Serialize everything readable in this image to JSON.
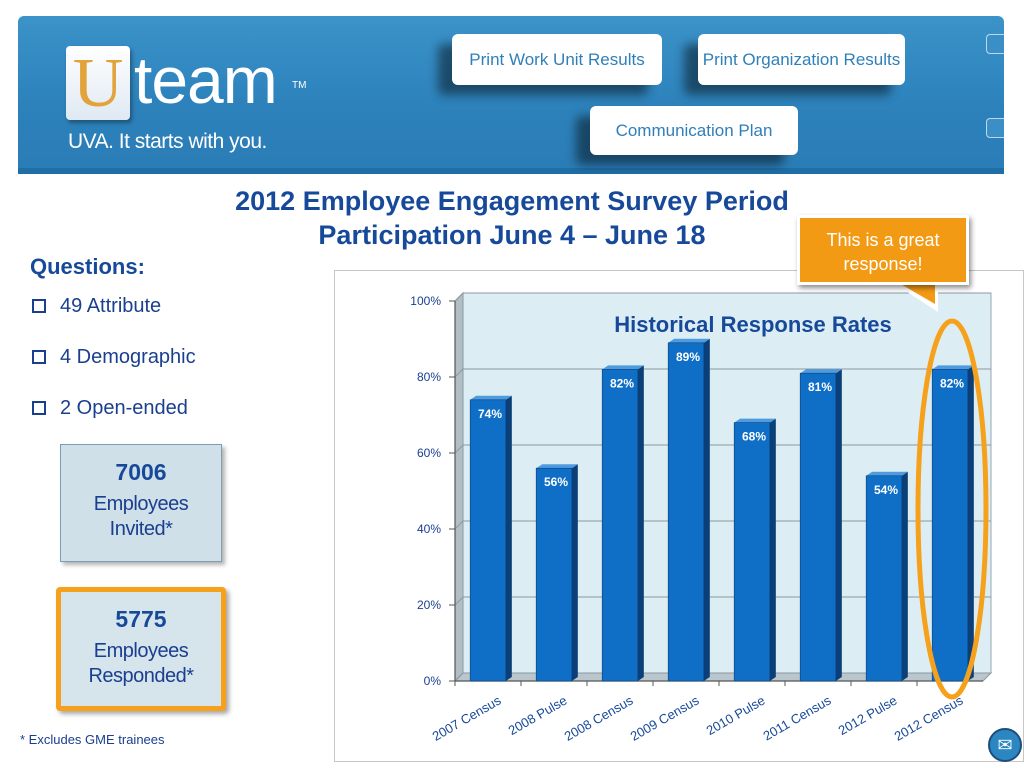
{
  "header": {
    "logo_u": "U",
    "logo_team": "team",
    "logo_tm": "TM",
    "tagline": "UVA. It starts with you.",
    "buttons": {
      "work_unit": "Print Work Unit Results",
      "organization": "Print Organization Results",
      "communication": "Communication Plan"
    }
  },
  "title": {
    "line1": "2012 Employee Engagement Survey Period",
    "line2": "Participation June 4 – June 18"
  },
  "questions": {
    "heading": "Questions:",
    "items": [
      "49 Attribute",
      "4 Demographic",
      "2 Open-ended"
    ]
  },
  "stats": {
    "invited": {
      "number": "7006",
      "label1": "Employees",
      "label2": "Invited*"
    },
    "responded": {
      "number": "5775",
      "label1": "Employees",
      "label2": "Responded*"
    }
  },
  "footnote": "* Excludes GME trainees",
  "callout": "This is a great response!",
  "colors": {
    "bar": "#0f6fc7",
    "bar_side": "#0a3f78",
    "bar_top": "#4f9be0",
    "highlight": "#f5a11c",
    "title": "#17499a"
  },
  "chart_data": {
    "type": "bar",
    "title": "Historical Response Rates",
    "categories": [
      "2007 Census",
      "2008 Pulse",
      "2008 Census",
      "2009 Census",
      "2010 Pulse",
      "2011 Census",
      "2012 Pulse",
      "2012 Census"
    ],
    "values": [
      74,
      56,
      82,
      89,
      68,
      81,
      54,
      82
    ],
    "value_labels": [
      "74%",
      "56%",
      "82%",
      "89%",
      "68%",
      "81%",
      "54%",
      "82%"
    ],
    "yticks": [
      "0%",
      "20%",
      "40%",
      "60%",
      "80%",
      "100%"
    ],
    "ylim": [
      0,
      100
    ],
    "grid": true,
    "highlight_category": "2012 Census"
  }
}
